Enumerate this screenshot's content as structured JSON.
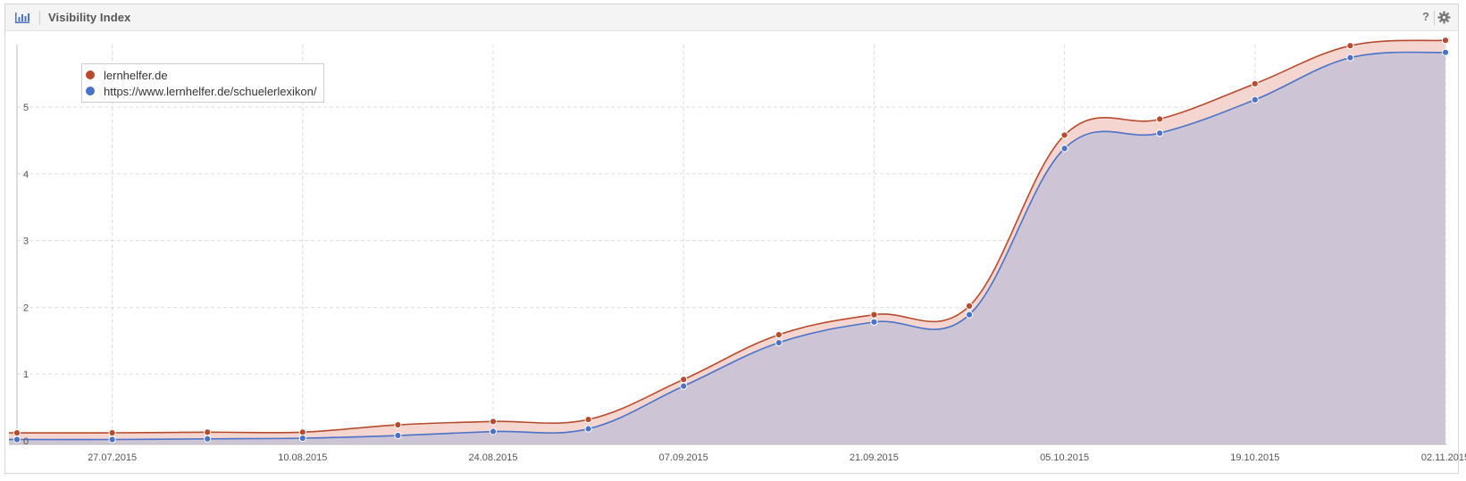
{
  "panel": {
    "title": "Visibility Index",
    "help_label": "?",
    "icons": {
      "chart": "bar-chart-icon",
      "help": "help-icon",
      "settings": "gear-icon"
    }
  },
  "colors": {
    "series_1": "#b84b2d",
    "series_1_fill": "#f4d5cf",
    "series_2": "#4a72c8",
    "series_2_fill": "#cdc5d6",
    "grid": "#dddddd",
    "axis_text": "#555555"
  },
  "chart_data": {
    "type": "area",
    "title": "",
    "xlabel": "",
    "ylabel": "",
    "x": [
      "20.07.2015",
      "27.07.2015",
      "03.08.2015",
      "10.08.2015",
      "17.08.2015",
      "24.08.2015",
      "31.08.2015",
      "07.09.2015",
      "14.09.2015",
      "21.09.2015",
      "28.09.2015",
      "05.10.2015",
      "12.10.2015",
      "19.10.2015",
      "26.10.2015",
      "02.11.2015"
    ],
    "x_tick_labels": [
      "27.07.2015",
      "10.08.2015",
      "24.08.2015",
      "07.09.2015",
      "21.09.2015",
      "05.10.2015",
      "19.10.2015",
      "02.11.2015"
    ],
    "ylim": [
      0,
      5.9
    ],
    "y_ticks": [
      0,
      1,
      2,
      3,
      4,
      5
    ],
    "grid": true,
    "legend_position": "top-left",
    "series": [
      {
        "name": "lernhelfer.de",
        "values": [
          0.12,
          0.12,
          0.13,
          0.13,
          0.24,
          0.29,
          0.32,
          0.92,
          1.59,
          1.89,
          2.02,
          4.58,
          4.82,
          5.35,
          5.92,
          6.0
        ]
      },
      {
        "name": "https://www.lernhelfer.de/schuelerlexikon/",
        "values": [
          0.02,
          0.02,
          0.03,
          0.04,
          0.08,
          0.14,
          0.18,
          0.82,
          1.47,
          1.78,
          1.89,
          4.38,
          4.61,
          5.11,
          5.74,
          5.82
        ]
      }
    ]
  }
}
